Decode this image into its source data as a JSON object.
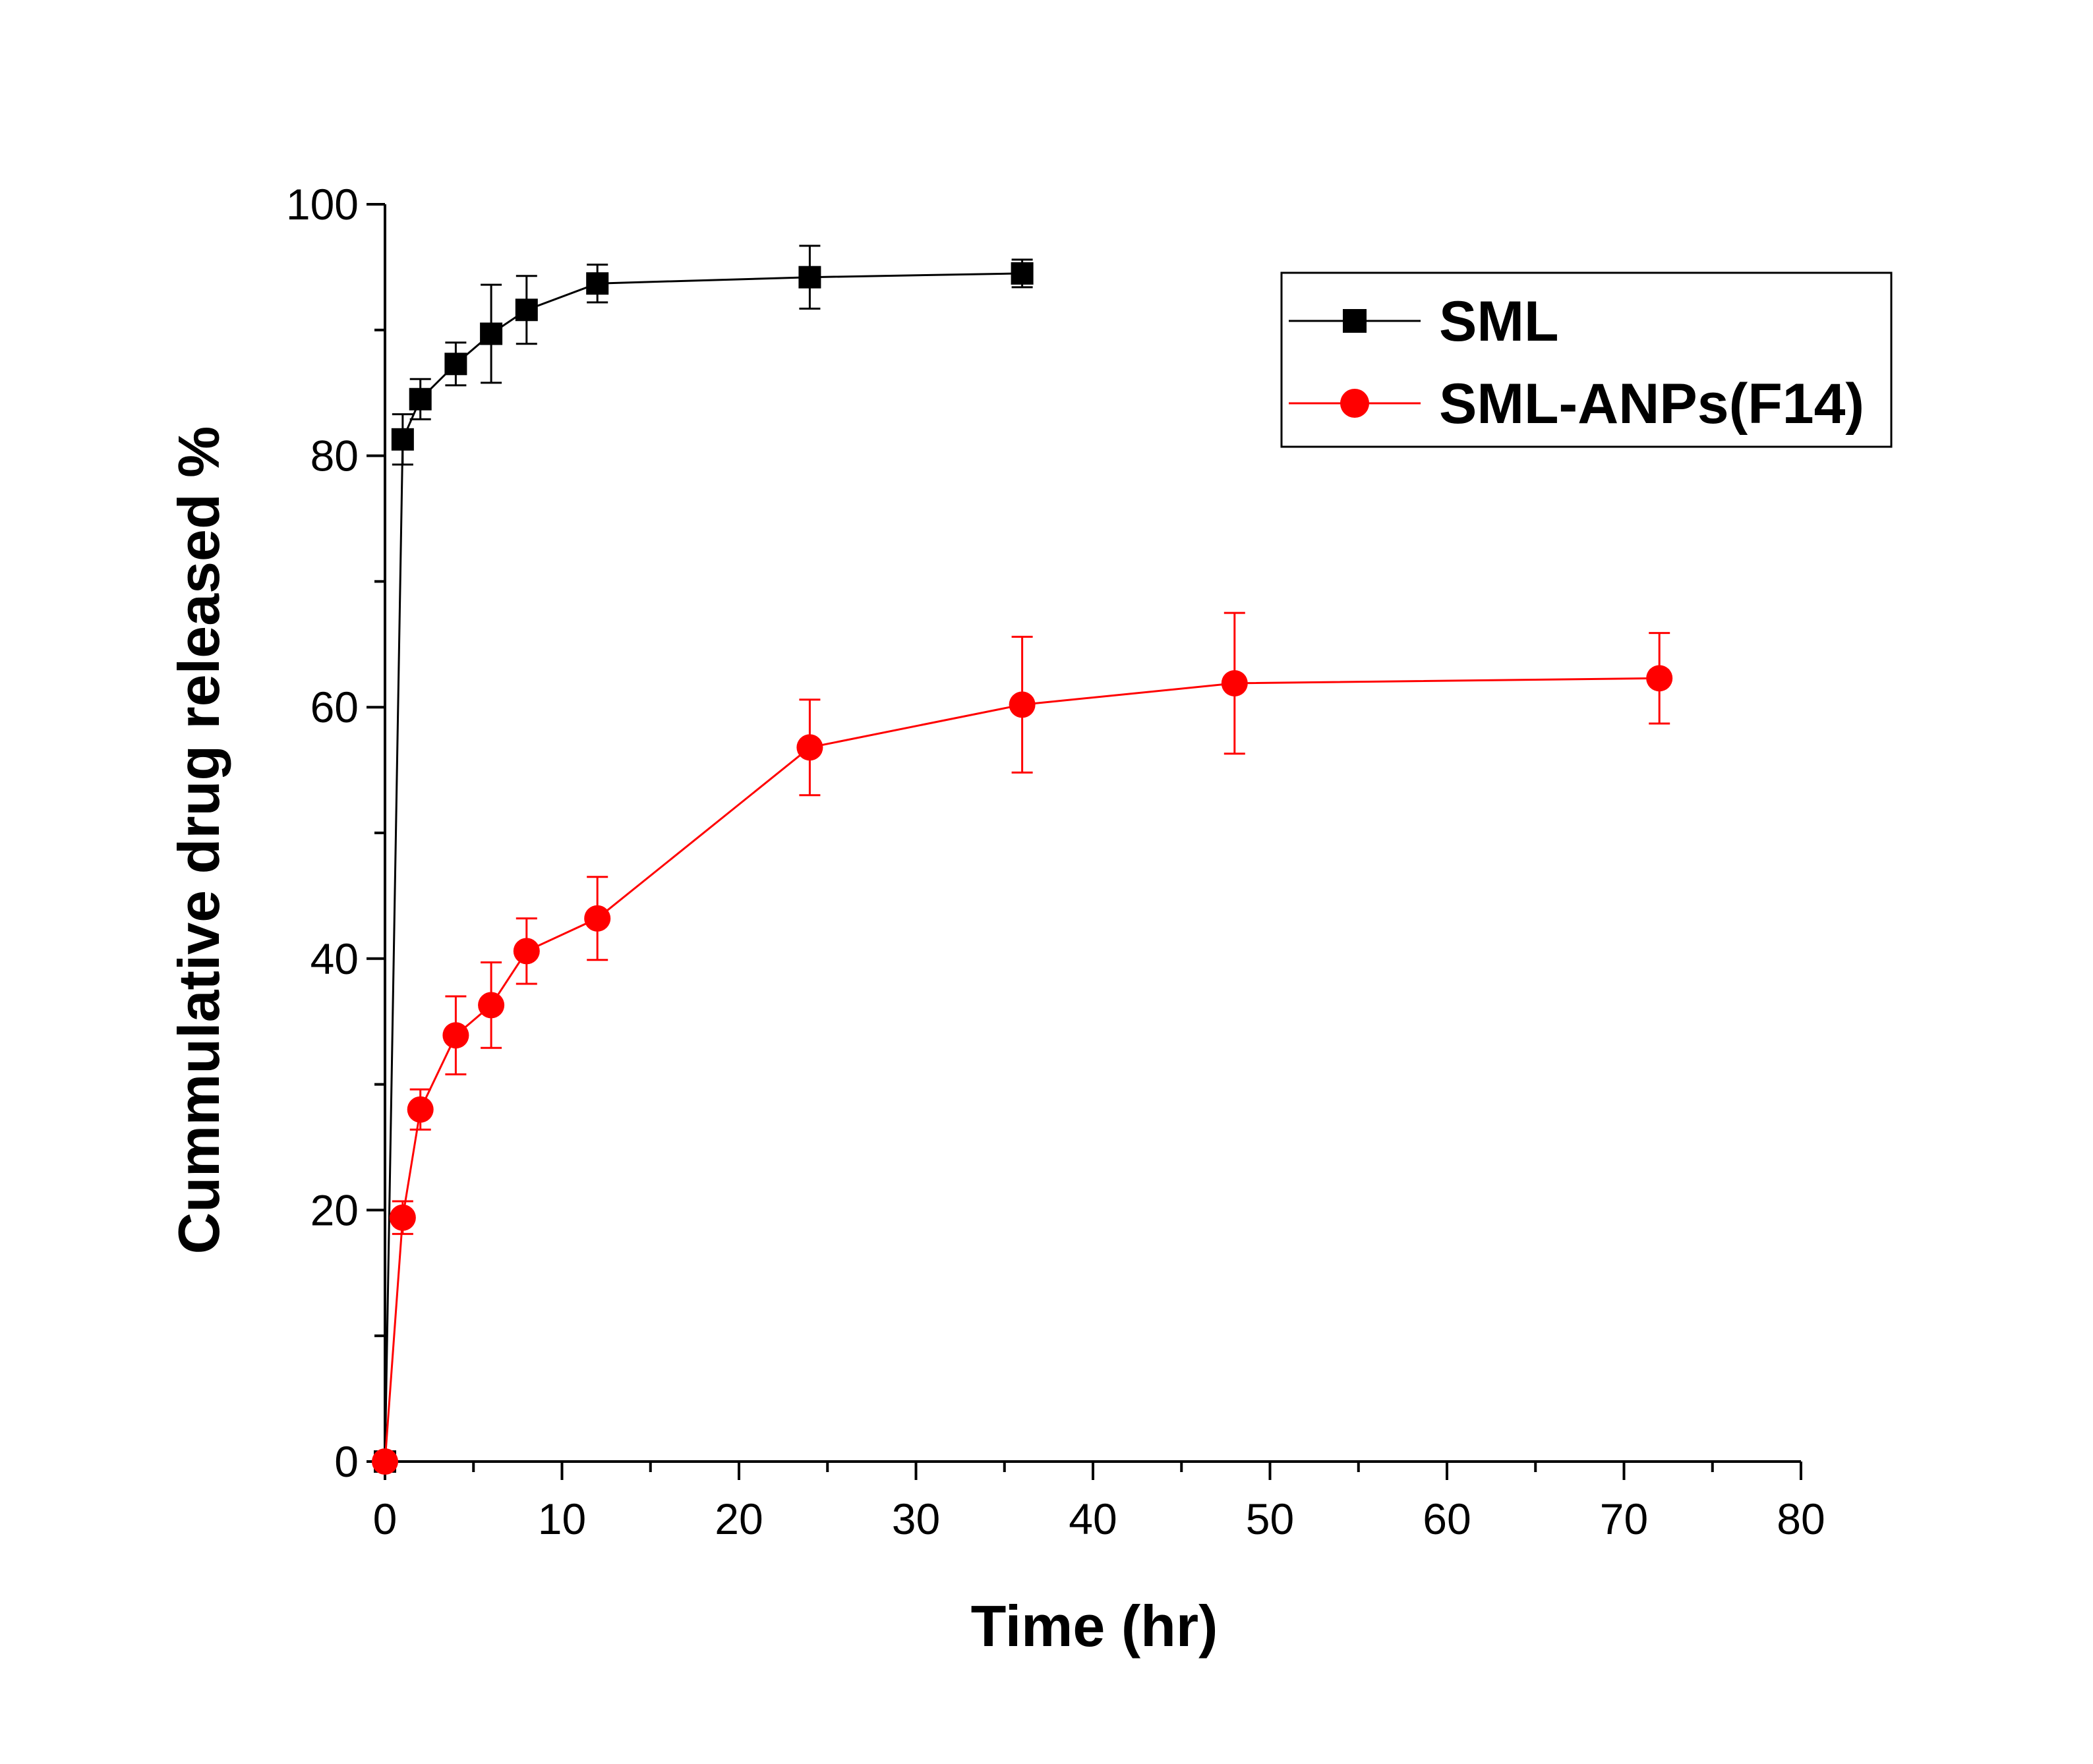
{
  "chart_data": {
    "type": "line",
    "title": "",
    "xlabel": "Time (hr)",
    "ylabel": "Cummulative drug released %",
    "xlim": [
      0,
      80
    ],
    "ylim": [
      0,
      100
    ],
    "xticks": [
      0,
      10,
      20,
      30,
      40,
      50,
      60,
      70,
      80
    ],
    "yticks": [
      0,
      20,
      40,
      60,
      80,
      100
    ],
    "grid": false,
    "legend_position": "top-right",
    "series": [
      {
        "name": "SML",
        "color": "#000000",
        "marker": "square",
        "x": [
          0,
          1,
          2,
          4,
          6,
          8,
          12,
          24,
          36
        ],
        "y": [
          0,
          81.3,
          84.5,
          87.3,
          89.7,
          91.6,
          93.7,
          94.2,
          94.5
        ],
        "err": [
          0,
          2.0,
          1.6,
          1.7,
          3.9,
          2.7,
          1.5,
          2.5,
          1.1
        ]
      },
      {
        "name": "SML-ANPs(F14)",
        "color": "#ff0000",
        "marker": "circle",
        "x": [
          0,
          1,
          2,
          4,
          6,
          8,
          12,
          24,
          36,
          48,
          72
        ],
        "y": [
          0,
          19.4,
          28.0,
          33.9,
          36.3,
          40.6,
          43.2,
          56.8,
          60.2,
          61.9,
          62.3
        ],
        "err": [
          0,
          1.3,
          1.6,
          3.1,
          3.4,
          2.6,
          3.3,
          3.8,
          5.4,
          5.6,
          3.6
        ]
      }
    ]
  }
}
